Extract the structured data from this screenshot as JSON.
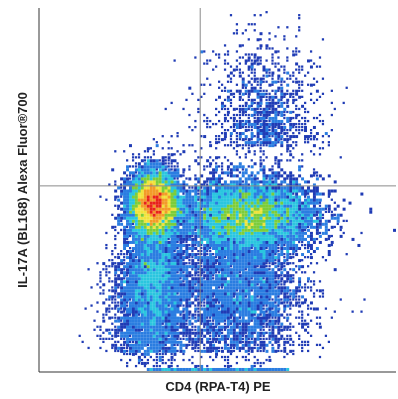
{
  "chart_data": {
    "type": "scatter",
    "subtype": "flow-cytometry-density-dot-plot",
    "xlabel": "CD4 (RPA-T4) PE",
    "ylabel": "IL-17A (BL168) Alexa Fluor®700",
    "x_tick_labels": [],
    "y_tick_labels": [],
    "xlim": [
      0,
      1
    ],
    "ylim": [
      0,
      1
    ],
    "quadrant_gate": {
      "x": 0.45,
      "y": 0.51
    },
    "populations": [
      {
        "name": "",
        "center": [
          0.32,
          0.45
        ],
        "density": "high",
        "peak_color": "#e8221b"
      },
      {
        "name": "",
        "center": [
          0.58,
          0.43
        ],
        "density": "medium",
        "peak_color": "#7ccd3a"
      },
      {
        "name": "",
        "center": [
          0.63,
          0.73
        ],
        "density": "low",
        "peak_color": "#1f3bb5"
      }
    ],
    "density_colors": [
      "#1f3bb5",
      "#2a7de1",
      "#2ac6df",
      "#7ccd3a",
      "#f1e33b",
      "#f39b28",
      "#e8221b"
    ],
    "grid": false,
    "legend": "none"
  }
}
